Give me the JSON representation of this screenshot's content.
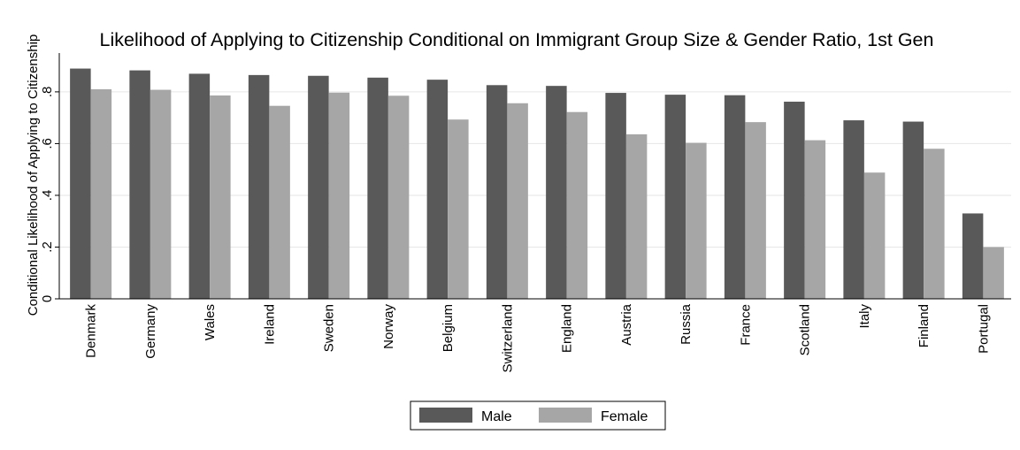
{
  "chart_data": {
    "type": "bar",
    "title": "Likelihood of Applying to Citizenship Conditional on Immigrant Group Size & Gender Ratio, 1st Gen",
    "xlabel": "",
    "ylabel": "Conditional Likelihood of Applying to Citizenship",
    "ylim": [
      0,
      0.95
    ],
    "yticks": [
      0,
      0.2,
      0.4,
      0.6,
      0.8
    ],
    "ytick_labels": [
      "0",
      ".2",
      ".4",
      ".6",
      ".8"
    ],
    "grid": true,
    "legend_position": "bottom",
    "categories": [
      "Denmark",
      "Germany",
      "Wales",
      "Ireland",
      "Sweden",
      "Norway",
      "Belgium",
      "Switzerland",
      "England",
      "Austria",
      "Russia",
      "France",
      "Scotland",
      "Italy",
      "Finland",
      "Portugal"
    ],
    "series": [
      {
        "name": "Male",
        "color": "#595959",
        "values": [
          0.89,
          0.883,
          0.87,
          0.865,
          0.862,
          0.855,
          0.847,
          0.826,
          0.823,
          0.796,
          0.789,
          0.787,
          0.762,
          0.69,
          0.685,
          0.33
        ]
      },
      {
        "name": "Female",
        "color": "#a6a6a6",
        "values": [
          0.81,
          0.808,
          0.786,
          0.746,
          0.797,
          0.785,
          0.693,
          0.756,
          0.722,
          0.636,
          0.603,
          0.683,
          0.613,
          0.488,
          0.58,
          0.2
        ]
      }
    ]
  }
}
